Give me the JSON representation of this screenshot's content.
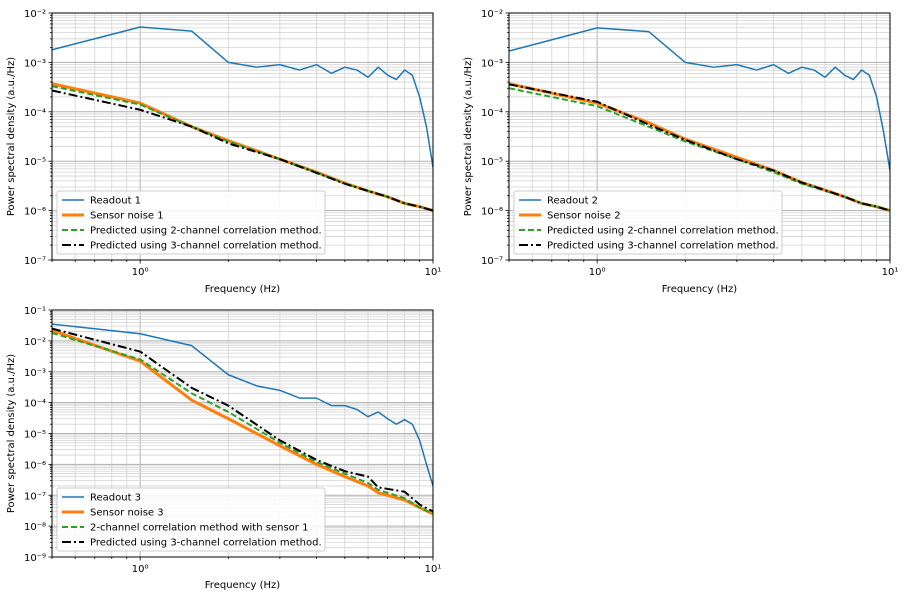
{
  "chart_data": [
    {
      "type": "line",
      "xlabel": "Frequency (Hz)",
      "ylabel": "Power spectral density (a.u./Hz)",
      "xscale": "log",
      "yscale": "log",
      "xlim": [
        0.5,
        10
      ],
      "ylim": [
        1e-07,
        0.01
      ],
      "x_ticks": [
        {
          "value": 1,
          "label": "10⁰"
        },
        {
          "value": 10,
          "label": "10¹"
        }
      ],
      "y_ticks": [
        {
          "value": 1e-07,
          "label": "10⁻⁷"
        },
        {
          "value": 1e-06,
          "label": "10⁻⁶"
        },
        {
          "value": 1e-05,
          "label": "10⁻⁵"
        },
        {
          "value": 0.0001,
          "label": "10⁻⁴"
        },
        {
          "value": 0.001,
          "label": "10⁻³"
        },
        {
          "value": 0.01,
          "label": "10⁻²"
        }
      ],
      "grid": true,
      "legend_position": "lower-left",
      "series": [
        {
          "name": "Readout 1",
          "color": "#1f77b4",
          "style": "solid",
          "width": 1.5,
          "x": [
            0.5,
            1.0,
            1.5,
            2.0,
            2.5,
            3.0,
            3.5,
            4.0,
            4.5,
            5.0,
            5.5,
            6.0,
            6.5,
            7.0,
            7.5,
            8.0,
            8.5,
            9.0,
            9.5,
            10.0
          ],
          "y": [
            0.0018,
            0.0052,
            0.0043,
            0.001,
            0.0008,
            0.0009,
            0.0007,
            0.0009,
            0.0006,
            0.0008,
            0.0007,
            0.0005,
            0.0008,
            0.00055,
            0.00045,
            0.0007,
            0.00055,
            0.0002,
            5e-05,
            7.5e-06
          ]
        },
        {
          "name": "Sensor noise 1",
          "color": "#ff7f0e",
          "style": "solid",
          "width": 3,
          "x": [
            0.5,
            1.0,
            1.5,
            2.0,
            3.0,
            4.0,
            5.0,
            6.0,
            7.0,
            8.0,
            9.0,
            10.0
          ],
          "y": [
            0.00037,
            0.00015,
            5e-05,
            2.6e-05,
            1.1e-05,
            6e-06,
            3.6e-06,
            2.5e-06,
            1.9e-06,
            1.4e-06,
            1.2e-06,
            1e-06
          ]
        },
        {
          "name": "Predicted using 2-channel correlation method.",
          "color": "#2ca02c",
          "style": "dashed",
          "width": 2,
          "x": [
            0.5,
            1.0,
            1.5,
            2.0,
            3.0,
            4.0,
            5.0,
            6.0,
            7.0,
            8.0,
            9.0,
            10.0
          ],
          "y": [
            0.00033,
            0.00014,
            5e-05,
            2.5e-05,
            1.1e-05,
            6e-06,
            3.5e-06,
            2.5e-06,
            1.9e-06,
            1.4e-06,
            1.2e-06,
            1e-06
          ]
        },
        {
          "name": "Predicted using 3-channel correlation method.",
          "color": "#000000",
          "style": "dashdot",
          "width": 2,
          "x": [
            0.5,
            1.0,
            1.5,
            2.0,
            3.0,
            4.0,
            5.0,
            6.0,
            7.0,
            8.0,
            9.0,
            10.0
          ],
          "y": [
            0.00027,
            0.00011,
            5e-05,
            2.3e-05,
            1.1e-05,
            5.8e-06,
            3.5e-06,
            2.5e-06,
            1.9e-06,
            1.4e-06,
            1.2e-06,
            1e-06
          ]
        }
      ]
    },
    {
      "type": "line",
      "xlabel": "Frequency (Hz)",
      "ylabel": "Power spectral density (a.u./Hz)",
      "xscale": "log",
      "yscale": "log",
      "xlim": [
        0.5,
        10
      ],
      "ylim": [
        1e-07,
        0.01
      ],
      "x_ticks": [
        {
          "value": 1,
          "label": "10⁰"
        },
        {
          "value": 10,
          "label": "10¹"
        }
      ],
      "y_ticks": [
        {
          "value": 1e-07,
          "label": "10⁻⁷"
        },
        {
          "value": 1e-06,
          "label": "10⁻⁶"
        },
        {
          "value": 1e-05,
          "label": "10⁻⁵"
        },
        {
          "value": 0.0001,
          "label": "10⁻⁴"
        },
        {
          "value": 0.001,
          "label": "10⁻³"
        },
        {
          "value": 0.01,
          "label": "10⁻²"
        }
      ],
      "grid": true,
      "legend_position": "lower-left",
      "series": [
        {
          "name": "Readout 2",
          "color": "#1f77b4",
          "style": "solid",
          "width": 1.5,
          "x": [
            0.5,
            1.0,
            1.5,
            2.0,
            2.5,
            3.0,
            3.5,
            4.0,
            4.5,
            5.0,
            5.5,
            6.0,
            6.5,
            7.0,
            7.5,
            8.0,
            8.5,
            9.0,
            9.5,
            10.0
          ],
          "y": [
            0.0017,
            0.005,
            0.0042,
            0.001,
            0.0008,
            0.0009,
            0.0007,
            0.0009,
            0.0006,
            0.0008,
            0.0007,
            0.0005,
            0.0008,
            0.00055,
            0.00045,
            0.0007,
            0.00055,
            0.0002,
            4e-05,
            6.5e-06
          ]
        },
        {
          "name": "Sensor noise 2",
          "color": "#ff7f0e",
          "style": "solid",
          "width": 3,
          "x": [
            0.5,
            1.0,
            1.5,
            2.0,
            3.0,
            4.0,
            5.0,
            6.0,
            7.0,
            8.0,
            9.0,
            10.0
          ],
          "y": [
            0.00037,
            0.00015,
            6e-05,
            2.8e-05,
            1.2e-05,
            6.5e-06,
            3.7e-06,
            2.6e-06,
            1.9e-06,
            1.4e-06,
            1.2e-06,
            1e-06
          ]
        },
        {
          "name": "Predicted using 2-channel correlation method.",
          "color": "#2ca02c",
          "style": "dashed",
          "width": 2,
          "x": [
            0.5,
            1.0,
            1.5,
            2.0,
            3.0,
            4.0,
            5.0,
            6.0,
            7.0,
            8.0,
            9.0,
            10.0
          ],
          "y": [
            0.0003,
            0.00013,
            5e-05,
            2.5e-05,
            1.1e-05,
            6e-06,
            3.5e-06,
            2.5e-06,
            1.9e-06,
            1.4e-06,
            1.2e-06,
            1e-06
          ]
        },
        {
          "name": "Predicted using 3-channel correlation method.",
          "color": "#000000",
          "style": "dashdot",
          "width": 2,
          "x": [
            0.5,
            1.0,
            1.5,
            2.0,
            3.0,
            4.0,
            5.0,
            6.0,
            7.0,
            8.0,
            9.0,
            10.0
          ],
          "y": [
            0.00036,
            0.00016,
            5.5e-05,
            2.7e-05,
            1.1e-05,
            6.5e-06,
            3.7e-06,
            2.6e-06,
            1.9e-06,
            1.4e-06,
            1.2e-06,
            1e-06
          ]
        }
      ]
    },
    {
      "type": "line",
      "xlabel": "Frequency (Hz)",
      "ylabel": "Power spectral density (a.u./Hz)",
      "xscale": "log",
      "yscale": "log",
      "xlim": [
        0.5,
        10
      ],
      "ylim": [
        1e-09,
        0.1
      ],
      "x_ticks": [
        {
          "value": 1,
          "label": "10⁰"
        },
        {
          "value": 10,
          "label": "10¹"
        }
      ],
      "y_ticks": [
        {
          "value": 1e-09,
          "label": "10⁻⁹"
        },
        {
          "value": 1e-08,
          "label": "10⁻⁸"
        },
        {
          "value": 1e-07,
          "label": "10⁻⁷"
        },
        {
          "value": 1e-06,
          "label": "10⁻⁶"
        },
        {
          "value": 1e-05,
          "label": "10⁻⁵"
        },
        {
          "value": 0.0001,
          "label": "10⁻⁴"
        },
        {
          "value": 0.001,
          "label": "10⁻³"
        },
        {
          "value": 0.01,
          "label": "10⁻²"
        },
        {
          "value": 0.1,
          "label": "10⁻¹"
        }
      ],
      "grid": true,
      "legend_position": "lower-left",
      "series": [
        {
          "name": "Readout 3",
          "color": "#1f77b4",
          "style": "solid",
          "width": 1.5,
          "x": [
            0.5,
            1.0,
            1.5,
            2.0,
            2.5,
            3.0,
            3.5,
            4.0,
            4.5,
            5.0,
            5.5,
            6.0,
            6.5,
            7.0,
            7.5,
            8.0,
            8.5,
            9.0,
            9.5,
            10.0
          ],
          "y": [
            0.035,
            0.017,
            0.007,
            0.0008,
            0.00035,
            0.00025,
            0.00014,
            0.00014,
            8e-05,
            8e-05,
            6e-05,
            3.5e-05,
            5e-05,
            3e-05,
            2e-05,
            2.8e-05,
            2e-05,
            6e-06,
            1e-06,
            2e-07
          ]
        },
        {
          "name": "Sensor noise 3",
          "color": "#ff7f0e",
          "style": "solid",
          "width": 3,
          "x": [
            0.5,
            1.0,
            1.5,
            2.0,
            3.0,
            4.0,
            5.0,
            6.0,
            6.5,
            7.0,
            8.0,
            9.0,
            10.0
          ],
          "y": [
            0.022,
            0.0022,
            0.00012,
            3e-05,
            4e-06,
            1e-06,
            4e-07,
            2e-07,
            1.2e-07,
            1e-07,
            7e-08,
            4e-08,
            2.5e-08
          ]
        },
        {
          "name": "2-channel correlation method with sensor 1",
          "color": "#2ca02c",
          "style": "dashed",
          "width": 2,
          "x": [
            0.5,
            1.0,
            1.5,
            2.0,
            3.0,
            4.0,
            5.0,
            6.0,
            6.5,
            7.0,
            8.0,
            9.0,
            10.0
          ],
          "y": [
            0.018,
            0.0025,
            0.0002,
            5e-05,
            5e-06,
            1.2e-06,
            5e-07,
            2.5e-07,
            1.5e-07,
            1.2e-07,
            8e-08,
            4e-08,
            2.5e-08
          ]
        },
        {
          "name": "Predicted using 3-channel correlation method.",
          "color": "#000000",
          "style": "dashdot",
          "width": 2,
          "x": [
            0.5,
            1.0,
            1.5,
            2.0,
            3.0,
            4.0,
            5.0,
            6.0,
            6.5,
            7.0,
            8.0,
            9.0,
            10.0
          ],
          "y": [
            0.025,
            0.0045,
            0.0003,
            8e-05,
            6e-06,
            1.4e-06,
            6e-07,
            4e-07,
            1.8e-07,
            1.6e-07,
            1.3e-07,
            5e-08,
            3e-08
          ]
        }
      ]
    }
  ]
}
